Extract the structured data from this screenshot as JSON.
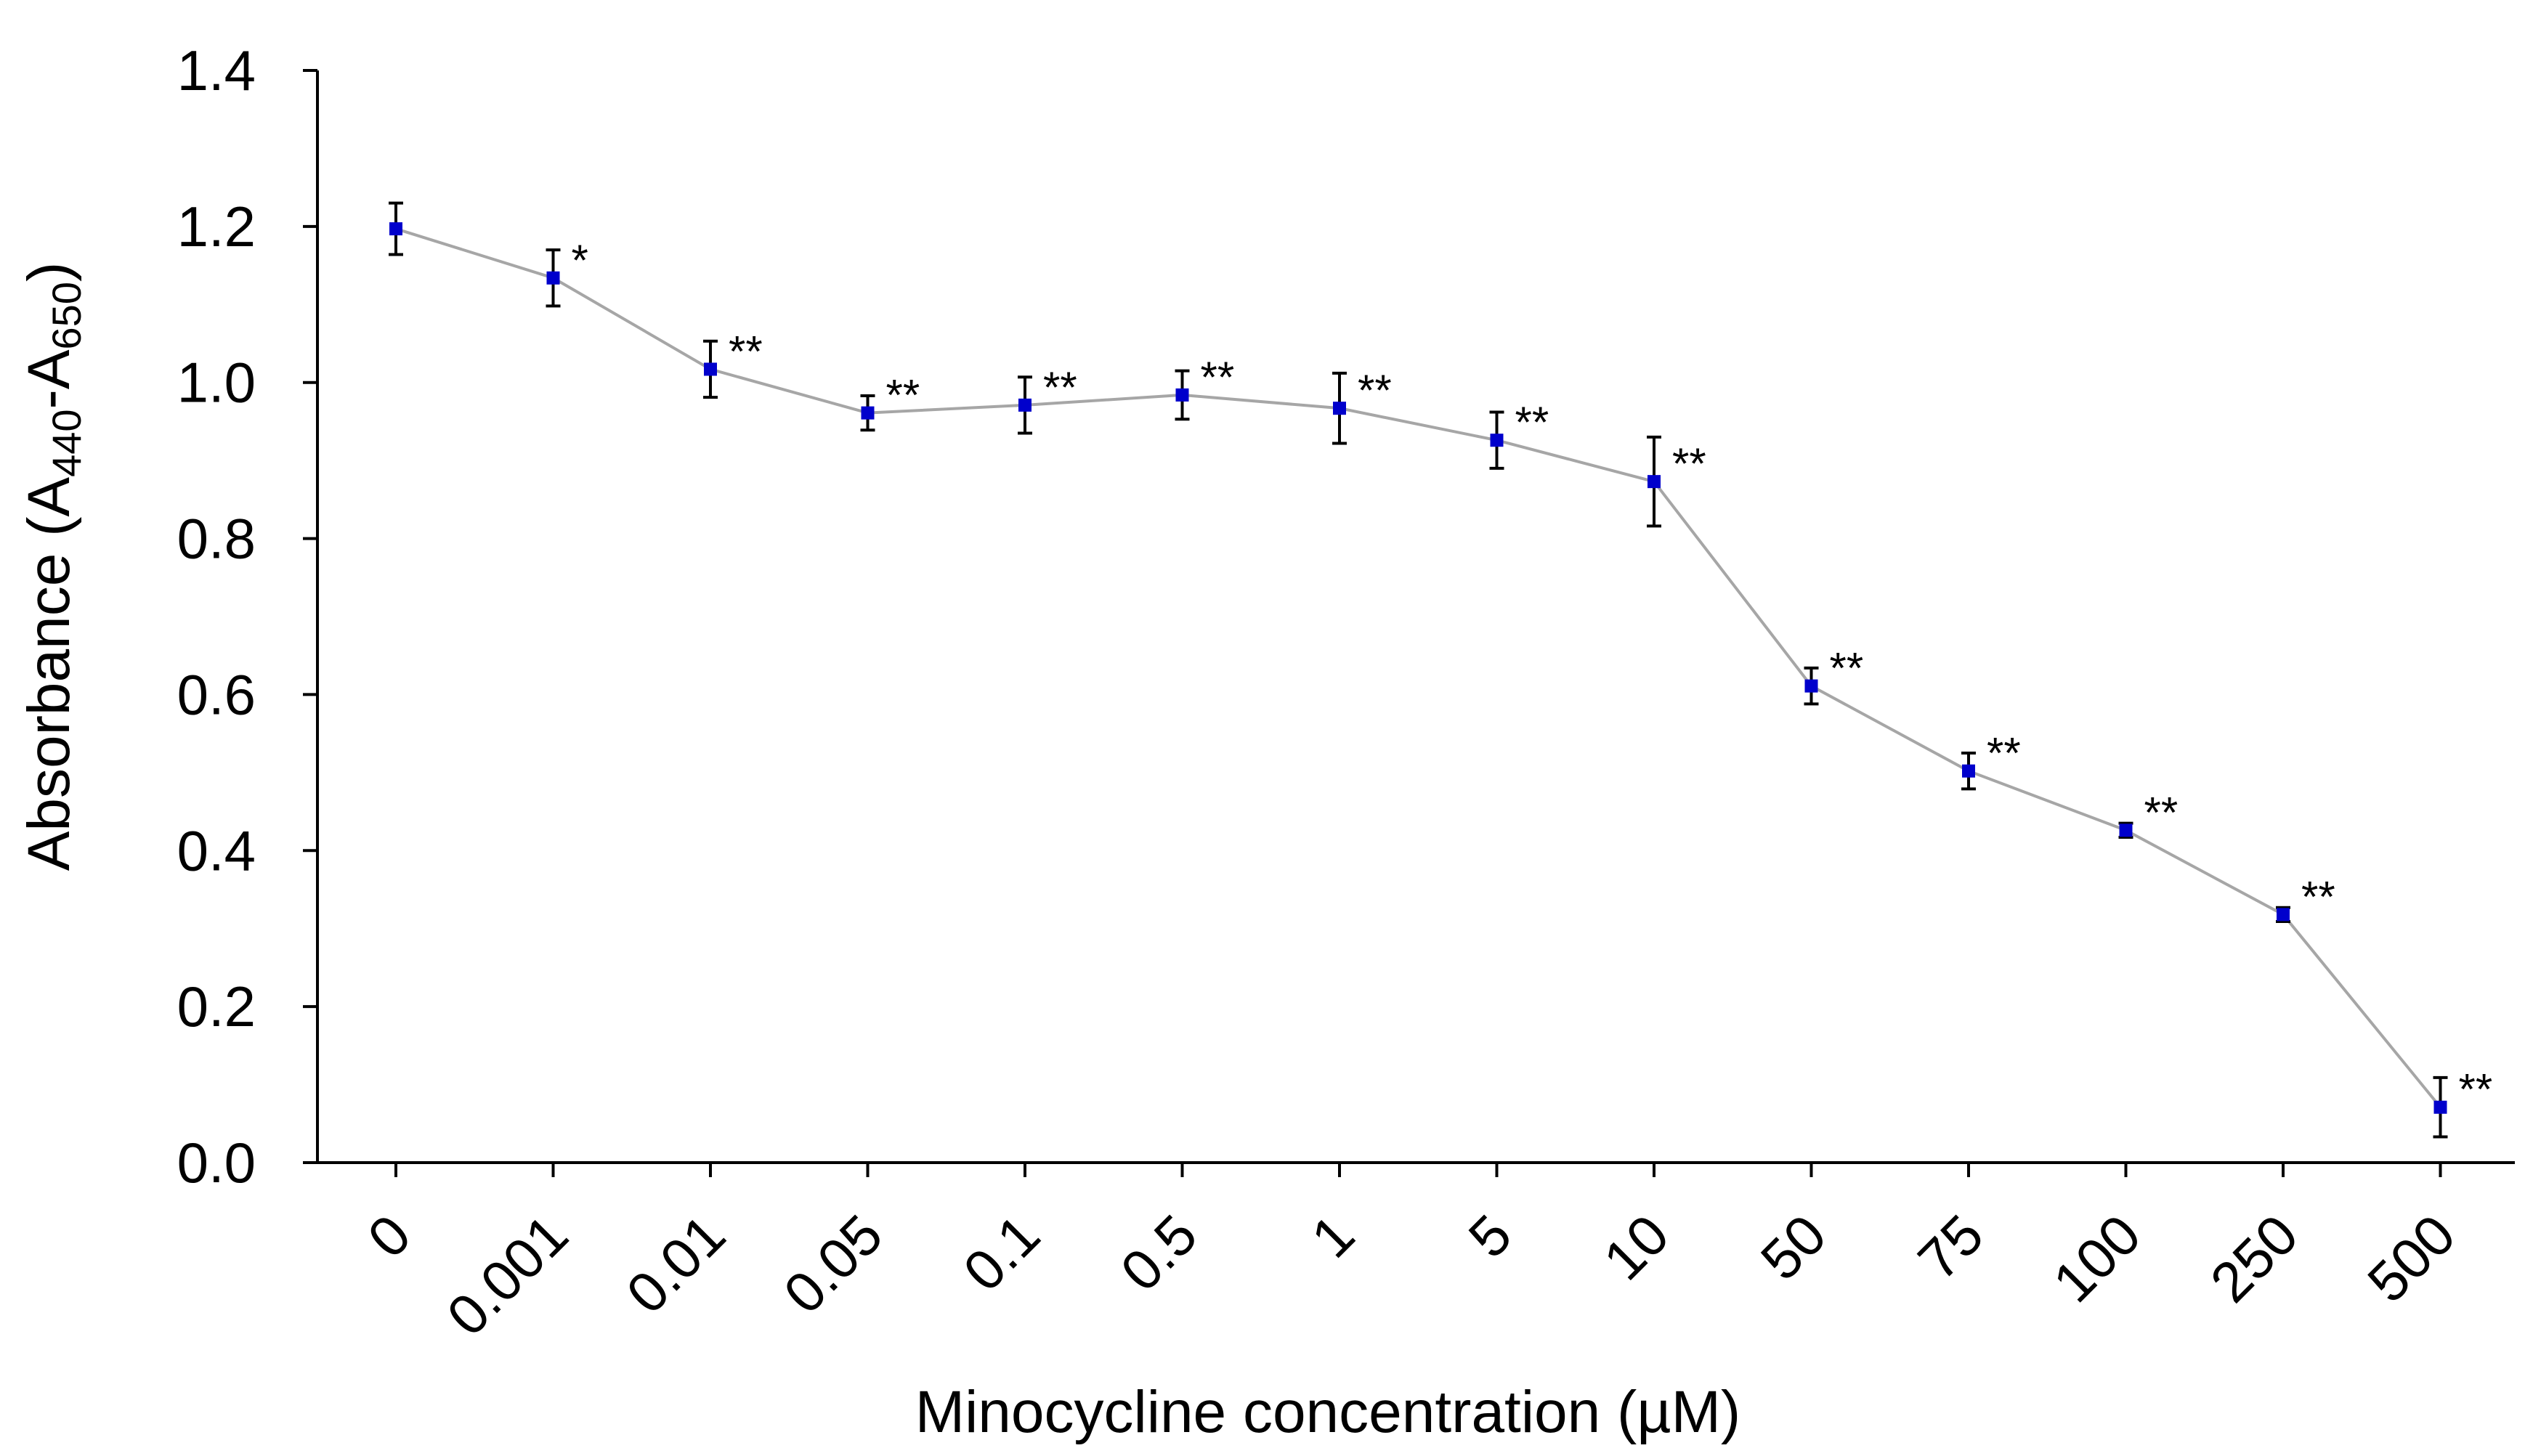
{
  "colors": {
    "background": "#ffffff",
    "axis": "#000000",
    "line": "#a6a6a6",
    "marker": "#0000cc",
    "error_bar": "#000000"
  },
  "chart_data": {
    "type": "line",
    "title": "",
    "xlabel": "Minocycline concentration (µM)",
    "ylabel": {
      "base": "Absorbance (A",
      "sub1": "440",
      "mid": "-A",
      "sub2": "650",
      "end": ")"
    },
    "categories": [
      "0",
      "0.001",
      "0.01",
      "0.05",
      "0.1",
      "0.5",
      "1",
      "5",
      "10",
      "50",
      "75",
      "100",
      "250",
      "500"
    ],
    "values": [
      1.197,
      1.134,
      1.017,
      0.961,
      0.971,
      0.984,
      0.967,
      0.926,
      0.873,
      0.611,
      0.502,
      0.426,
      0.318,
      0.071
    ],
    "errors": [
      0.033,
      0.036,
      0.036,
      0.022,
      0.036,
      0.031,
      0.045,
      0.036,
      0.057,
      0.023,
      0.023,
      0.009,
      0.009,
      0.038
    ],
    "significance": [
      "",
      "*",
      "**",
      "**",
      "**",
      "**",
      "**",
      "**",
      "**",
      "**",
      "**",
      "**",
      "**",
      "**"
    ],
    "ylim": [
      0,
      1.4
    ],
    "yticks": [
      "0.0",
      "0.2",
      "0.4",
      "0.6",
      "0.8",
      "1.0",
      "1.2",
      "1.4"
    ],
    "ytick_values": [
      0,
      0.2,
      0.4,
      0.6,
      0.8,
      1.0,
      1.2,
      1.4
    ],
    "grid": false,
    "legend": "none"
  }
}
